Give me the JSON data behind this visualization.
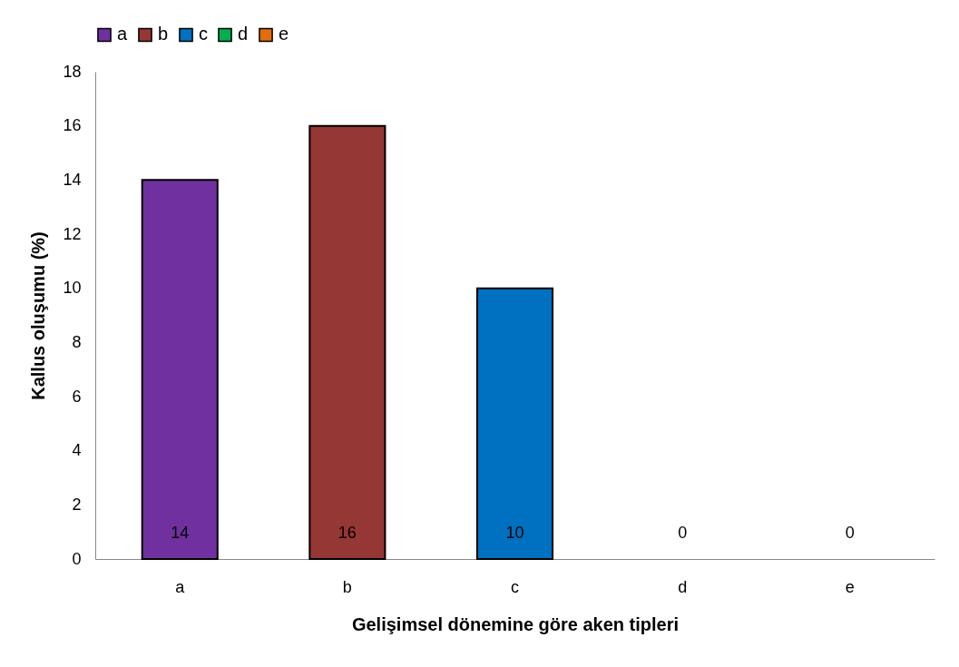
{
  "chart_data": {
    "type": "bar",
    "xlabel": "Gelişimsel dönemine göre aken tipleri",
    "ylabel": "Kallus oluşumu (%)",
    "categories": [
      "a",
      "b",
      "c",
      "d",
      "e"
    ],
    "series": [
      {
        "name": "a",
        "color": "#7030a0",
        "values": [
          14,
          null,
          null,
          null,
          null
        ]
      },
      {
        "name": "b",
        "color": "#953735",
        "values": [
          null,
          16,
          null,
          null,
          null
        ]
      },
      {
        "name": "c",
        "color": "#0070c0",
        "values": [
          null,
          null,
          10,
          null,
          null
        ]
      },
      {
        "name": "d",
        "color": "#00b050",
        "values": [
          null,
          null,
          null,
          0,
          null
        ]
      },
      {
        "name": "e",
        "color": "#e46c0a",
        "values": [
          null,
          null,
          null,
          null,
          0
        ]
      }
    ],
    "ylim": [
      0,
      18
    ],
    "yticks": [
      0,
      2,
      4,
      6,
      8,
      10,
      12,
      14,
      16,
      18
    ],
    "data_labels": true,
    "legend": "top",
    "grid": false
  }
}
